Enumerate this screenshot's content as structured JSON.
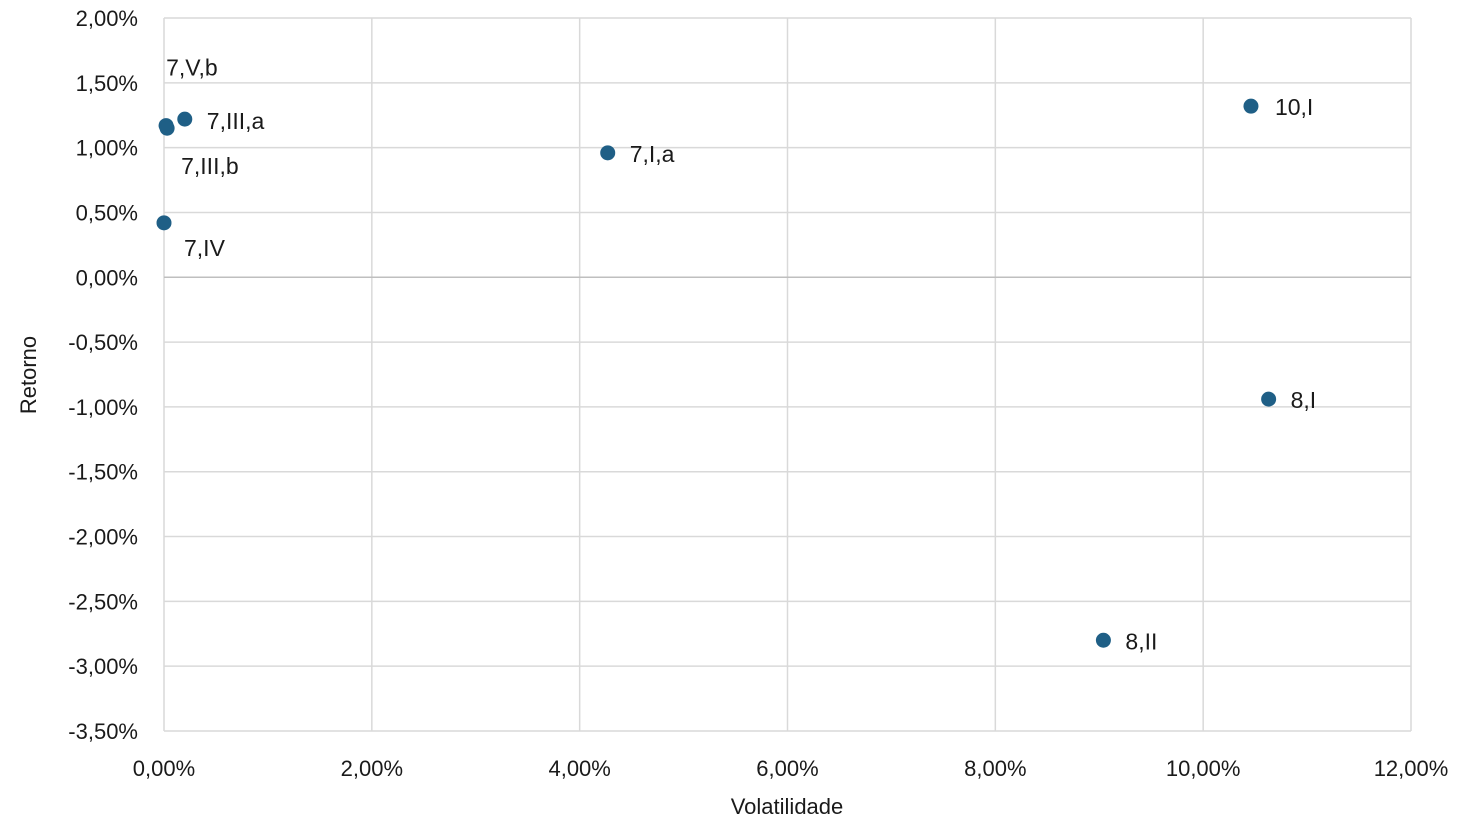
{
  "chart_data": {
    "type": "scatter",
    "xlabel": "Volatilidade",
    "ylabel": "Retorno",
    "xlim": [
      0,
      12
    ],
    "ylim": [
      -3.5,
      2.0
    ],
    "x_ticks": [
      0,
      2,
      4,
      6,
      8,
      10,
      12
    ],
    "y_ticks": [
      2.0,
      1.5,
      1.0,
      0.5,
      0.0,
      -0.5,
      -1.0,
      -1.5,
      -2.0,
      -2.5,
      -3.0,
      -3.5
    ],
    "x_tick_labels": [
      "0,00%",
      "2,00%",
      "4,00%",
      "6,00%",
      "8,00%",
      "10,00%",
      "12,00%"
    ],
    "y_tick_labels": [
      "2,00%",
      "1,50%",
      "1,00%",
      "0,50%",
      "0,00%",
      "-0,50%",
      "-1,00%",
      "-1,50%",
      "-2,00%",
      "-2,50%",
      "-3,00%",
      "-3,50%"
    ],
    "grid": true,
    "marker_color": "#1f5f86",
    "points": [
      {
        "label": "7,V,b",
        "x": 0.02,
        "y": 1.17
      },
      {
        "label": "7,III,a",
        "x": 0.2,
        "y": 1.22
      },
      {
        "label": "7,III,b",
        "x": 0.03,
        "y": 1.15
      },
      {
        "label": "7,IV",
        "x": 0.0,
        "y": 0.42
      },
      {
        "label": "7,I,a",
        "x": 4.27,
        "y": 0.96
      },
      {
        "label": "10,I",
        "x": 10.46,
        "y": 1.32
      },
      {
        "label": "8,I",
        "x": 10.63,
        "y": -0.94
      },
      {
        "label": "8,II",
        "x": 9.04,
        "y": -2.8
      }
    ]
  }
}
